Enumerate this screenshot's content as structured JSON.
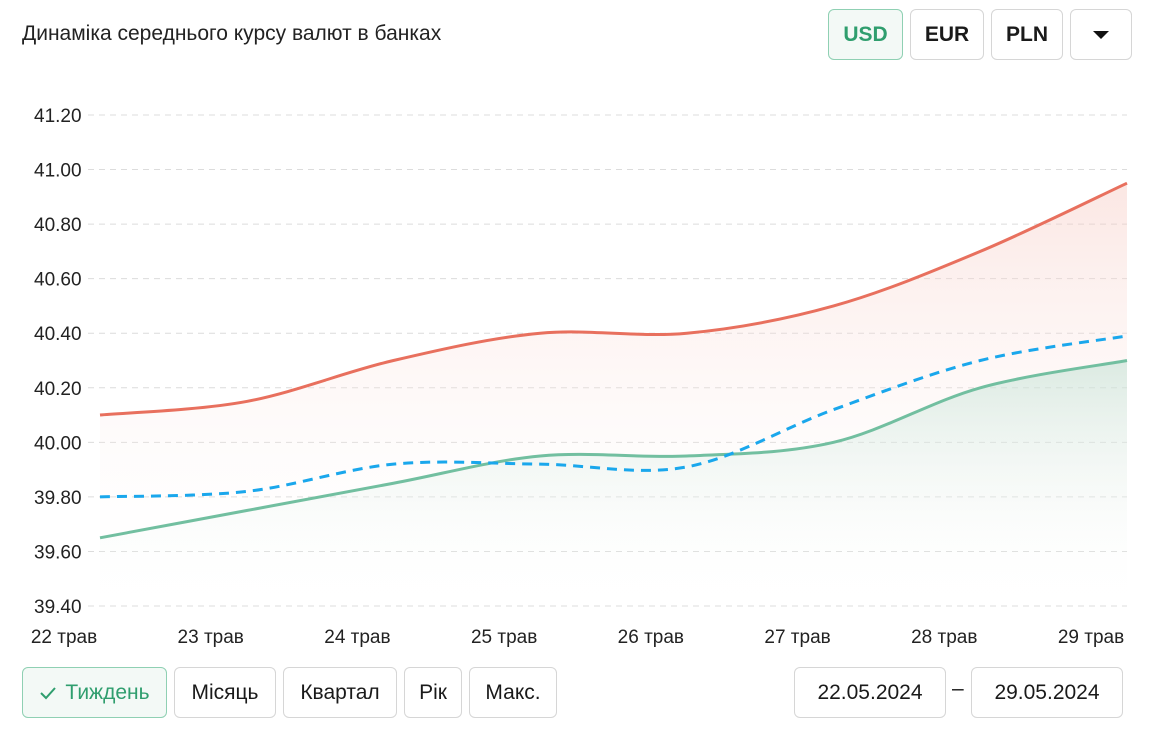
{
  "header": {
    "title": "Динаміка середнього курсу валют в банках"
  },
  "currencies": [
    {
      "label": "USD",
      "active": true
    },
    {
      "label": "EUR",
      "active": false
    },
    {
      "label": "PLN",
      "active": false
    }
  ],
  "more_icon": "caret-down-icon",
  "periods": [
    {
      "label": "Тиждень",
      "active": true,
      "icon": "check-icon"
    },
    {
      "label": "Місяць"
    },
    {
      "label": "Квартал"
    },
    {
      "label": "Рік"
    },
    {
      "label": "Макс."
    }
  ],
  "date_range": {
    "from": "22.05.2024",
    "separator": "–",
    "to": "29.05.2024"
  },
  "colors": {
    "accent": "#2f9e6e",
    "sell": "#e8705e",
    "buy": "#72bfa0",
    "nbu": "#1aa7ec"
  },
  "chart_data": {
    "type": "line",
    "categories": [
      "22 трав",
      "23 трав",
      "24 трав",
      "25 трав",
      "26 трав",
      "27 трав",
      "28 трав",
      "29 трав"
    ],
    "yticks": [
      "39.40",
      "39.60",
      "39.80",
      "40.00",
      "40.20",
      "40.40",
      "40.60",
      "40.80",
      "41.00",
      "41.20"
    ],
    "ylim": [
      39.4,
      41.2
    ],
    "grid": true,
    "series": [
      {
        "values": [
          40.1,
          40.15,
          40.3,
          40.4,
          40.4,
          40.5,
          40.7,
          40.95
        ],
        "color": "#e8705e",
        "style": "solid",
        "fill": true
      },
      {
        "values": [
          39.65,
          39.75,
          39.85,
          39.95,
          39.95,
          40.0,
          40.2,
          40.3
        ],
        "color": "#72bfa0",
        "style": "solid",
        "fill": true
      },
      {
        "values": [
          39.8,
          39.82,
          39.92,
          39.92,
          39.91,
          40.12,
          40.3,
          40.39
        ],
        "color": "#1aa7ec",
        "style": "dashed",
        "fill": false
      }
    ]
  }
}
